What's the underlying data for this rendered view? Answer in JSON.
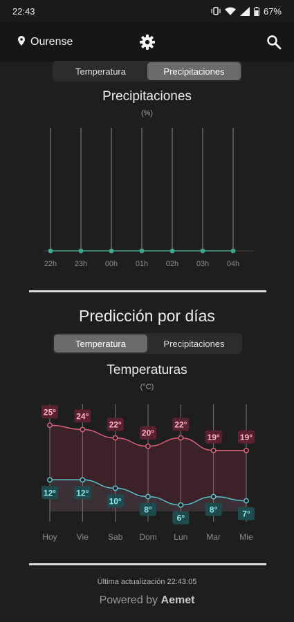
{
  "status_bar": {
    "time": "22:43",
    "battery": "67%"
  },
  "header": {
    "location": "Ourense"
  },
  "hourly": {
    "tabs": [
      {
        "label": "Temperatura",
        "active": false
      },
      {
        "label": "Precipitaciones",
        "active": true
      }
    ],
    "title": "Precipitaciones",
    "unit": "(%)"
  },
  "daily": {
    "heading": "Predicción por días",
    "tabs": [
      {
        "label": "Temperatura",
        "active": true
      },
      {
        "label": "Precipitaciones",
        "active": false
      }
    ],
    "title": "Temperaturas",
    "unit": "(°C)"
  },
  "chart_data": [
    {
      "type": "line",
      "title": "Precipitaciones",
      "ylabel": "(%)",
      "x": [
        "22h",
        "23h",
        "00h",
        "01h",
        "02h",
        "03h",
        "04h"
      ],
      "series": [
        {
          "values": [
            0,
            0,
            0,
            0,
            0,
            0,
            0
          ],
          "color": "#3fa58c"
        }
      ],
      "ylim": [
        0,
        100
      ],
      "grid": "vertical"
    },
    {
      "type": "line",
      "title": "Temperaturas",
      "ylabel": "(°C)",
      "x": [
        "Hoy",
        "Vie",
        "Sab",
        "Dom",
        "Lun",
        "Mar",
        "Mie"
      ],
      "series": [
        {
          "values": [
            25,
            24,
            22,
            20,
            22,
            19,
            19
          ],
          "color": "#e06080",
          "label_color": "#ffb2c4"
        },
        {
          "values": [
            12,
            12,
            10,
            8,
            6,
            8,
            7
          ],
          "color": "#5cc4cc",
          "label_color": "#8fe8ee"
        }
      ],
      "ylim": [
        2,
        30
      ],
      "grid": "vertical"
    }
  ],
  "footer": {
    "last_update": "Última actualización 22:43:05",
    "powered_prefix": "Powered by",
    "powered_brand": "Aemet"
  }
}
